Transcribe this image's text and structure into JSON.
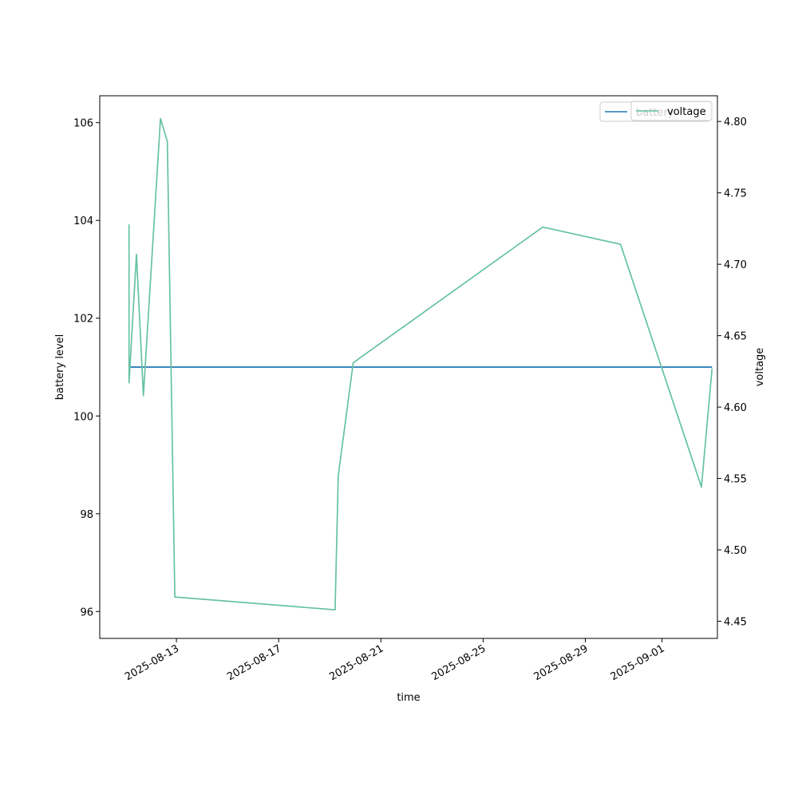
{
  "chart_data": {
    "type": "line",
    "xlabel": "time",
    "ylabel_left": "battery level",
    "ylabel_right": "voltage",
    "x_ticks": [
      "2025-08-13",
      "2025-08-17",
      "2025-08-21",
      "2025-08-25",
      "2025-08-29",
      "2025-09-01"
    ],
    "y_left_ticks": [
      "96",
      "98",
      "100",
      "102",
      "104",
      "106"
    ],
    "y_right_ticks": [
      "4.45",
      "4.50",
      "4.55",
      "4.60",
      "4.65",
      "4.70",
      "4.75",
      "4.80"
    ],
    "y_left_lim": [
      95.45,
      106.55
    ],
    "y_right_lim": [
      4.438,
      4.818
    ],
    "x_lim": [
      "2025-08-10 00:00",
      "2025-09-03 04:00"
    ],
    "legend_position": "top-right",
    "series": [
      {
        "name": "battery",
        "axis": "left",
        "color": "#1f77b4",
        "x": [
          "2025-08-11 03:30",
          "2025-09-02 23:00"
        ],
        "values": [
          101,
          101
        ]
      },
      {
        "name": "voltage",
        "axis": "right",
        "color": "#66c2a5",
        "x": [
          "2025-08-11 03:30",
          "2025-08-11 03:30",
          "2025-08-11 10:30",
          "2025-08-11 17:00",
          "2025-08-12 09:00",
          "2025-08-12 15:30",
          "2025-08-12 22:30",
          "2025-08-19 05:00",
          "2025-08-19 08:00",
          "2025-08-19 22:00",
          "2025-08-27 08:00",
          "2025-08-30 09:00",
          "2025-09-02 13:00",
          "2025-09-02 23:00"
        ],
        "values": [
          4.728,
          4.617,
          4.707,
          4.608,
          4.802,
          4.786,
          4.467,
          4.458,
          4.552,
          4.631,
          4.726,
          4.714,
          4.544,
          4.627
        ]
      }
    ]
  }
}
